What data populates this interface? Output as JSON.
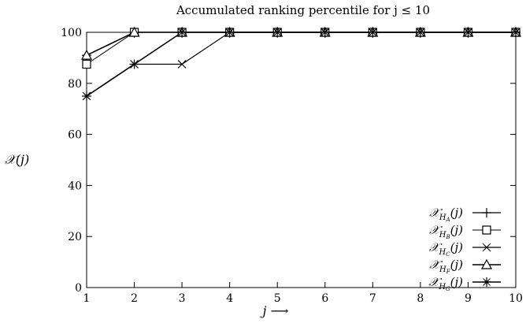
{
  "chart_data": {
    "type": "line",
    "title": "Accumulated ranking percentile for j ≤ 10",
    "xlabel": "j ⟶",
    "ylabel": "𝒳(j)",
    "x": [
      1,
      2,
      3,
      4,
      5,
      6,
      7,
      8,
      9,
      10
    ],
    "xlim": [
      1,
      10
    ],
    "ylim": [
      0,
      100
    ],
    "yticks": [
      0,
      20,
      40,
      60,
      80,
      100
    ],
    "xticks": [
      1,
      2,
      3,
      4,
      5,
      6,
      7,
      8,
      9,
      10
    ],
    "grid": false,
    "legend_position": "bottom-right",
    "series": [
      {
        "name": "𝒳_{H_A}(j)",
        "marker": "plus",
        "values": [
          91,
          100,
          100,
          100,
          100,
          100,
          100,
          100,
          100,
          100
        ]
      },
      {
        "name": "𝒳_{H_B}(j)",
        "marker": "square",
        "values": [
          87.5,
          100,
          100,
          100,
          100,
          100,
          100,
          100,
          100,
          100
        ]
      },
      {
        "name": "𝒳_{H_C}(j)",
        "marker": "cross",
        "values": [
          75,
          87.5,
          87.5,
          100,
          100,
          100,
          100,
          100,
          100,
          100
        ]
      },
      {
        "name": "𝒳_{H_F}(j)",
        "marker": "triangle",
        "values": [
          91,
          100,
          100,
          100,
          100,
          100,
          100,
          100,
          100,
          100
        ]
      },
      {
        "name": "𝒳_{H_G}(j)",
        "marker": "star",
        "values": [
          75,
          87.5,
          100,
          100,
          100,
          100,
          100,
          100,
          100,
          100
        ]
      }
    ],
    "legend": {
      "labels": [
        {
          "base": "𝒳",
          "sub_script": "H",
          "sub_letter": "A",
          "tail": "(j)"
        },
        {
          "base": "𝒳",
          "sub_script": "H",
          "sub_letter": "B",
          "tail": "(j)"
        },
        {
          "base": "𝒳",
          "sub_script": "H",
          "sub_letter": "C",
          "tail": "(j)"
        },
        {
          "base": "𝒳",
          "sub_script": "H",
          "sub_letter": "F",
          "tail": "(j)"
        },
        {
          "base": "𝒳",
          "sub_script": "H",
          "sub_letter": "G",
          "tail": "(j)"
        }
      ]
    },
    "colors": {
      "line": "#000000",
      "axis": "#000000",
      "background": "#ffffff"
    }
  }
}
